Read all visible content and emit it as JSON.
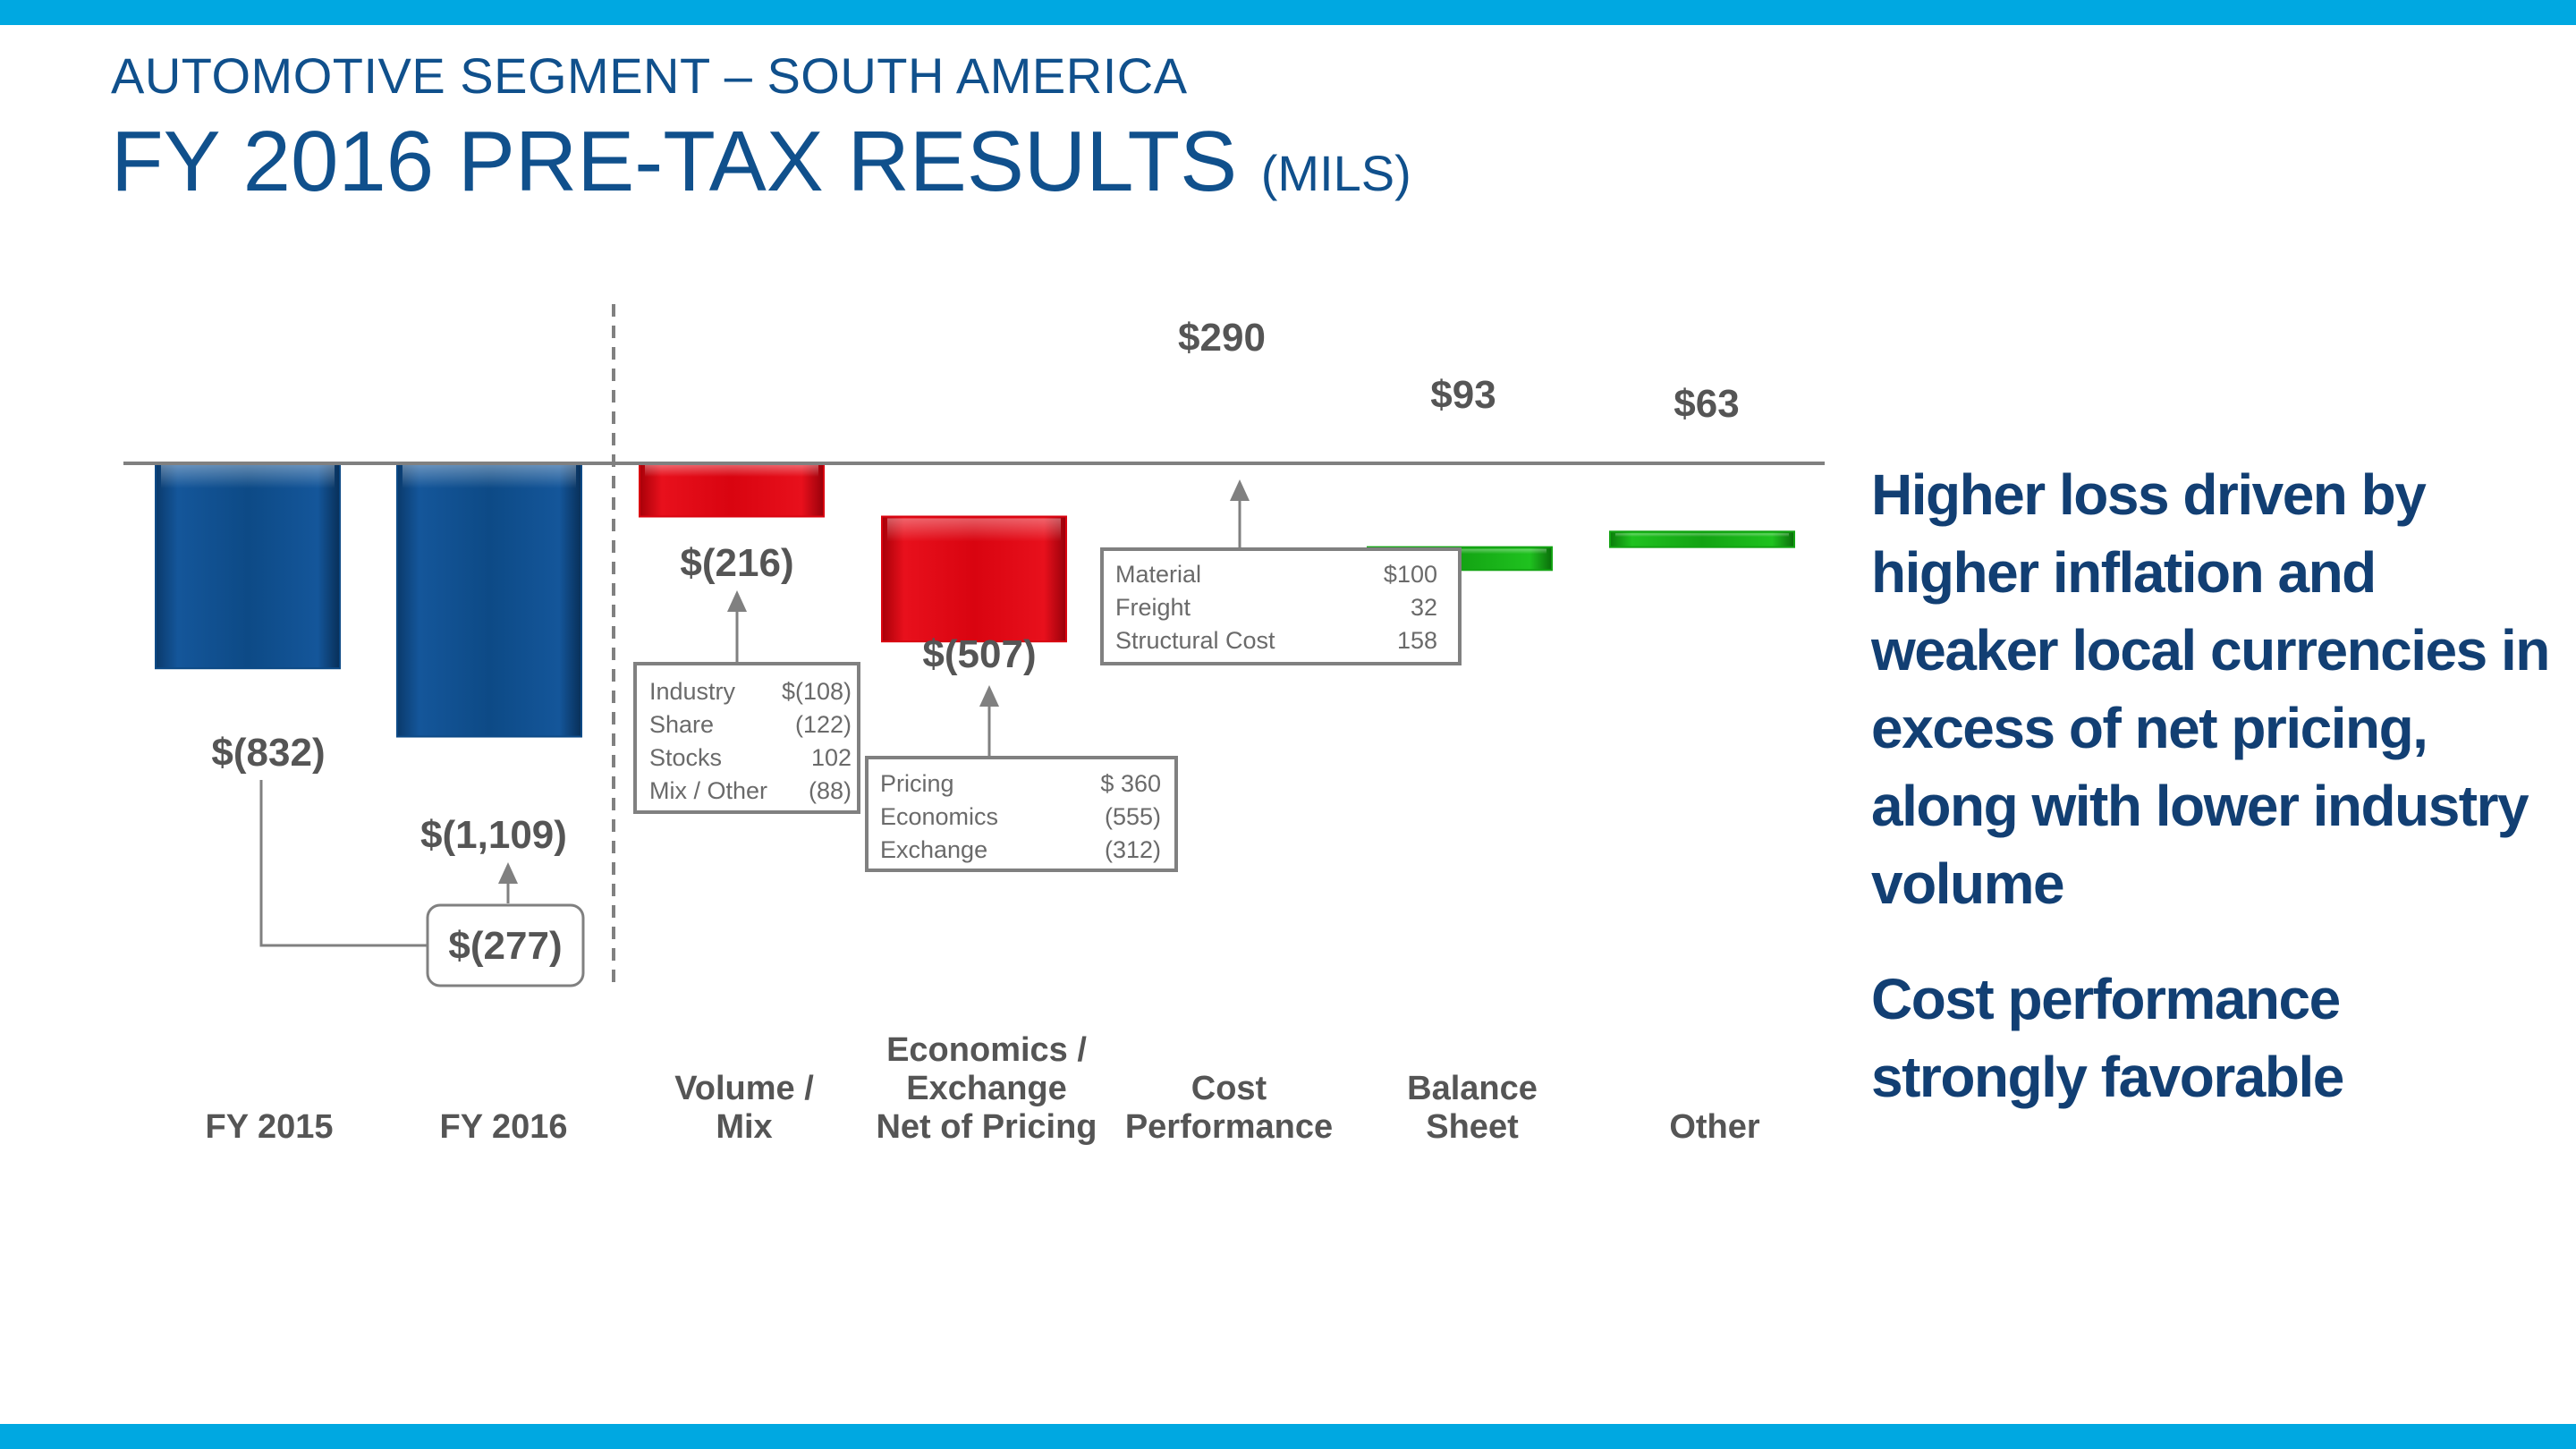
{
  "header": {
    "subtitle": "AUTOMOTIVE SEGMENT – SOUTH AMERICA",
    "title": "FY 2016 PRE-TAX RESULTS",
    "title_units": "(MILS)"
  },
  "chart_data": {
    "type": "bar",
    "subtype": "waterfall",
    "categories": [
      "FY 2015",
      "FY 2016",
      "Volume / Mix",
      "Economics / Exchange Net of Pricing",
      "Cost Performance",
      "Balance Sheet",
      "Other"
    ],
    "category_label_lines": [
      [
        "FY 2015"
      ],
      [
        "FY 2016"
      ],
      [
        "Volume /",
        "Mix"
      ],
      [
        "Economics /",
        "Exchange",
        "Net of Pricing"
      ],
      [
        "Cost",
        "Performance"
      ],
      [
        "Balance",
        "Sheet"
      ],
      [
        "Other"
      ]
    ],
    "values": [
      -832,
      -1109,
      -216,
      -507,
      290,
      93,
      63
    ],
    "value_labels": [
      "$(832)",
      "$(1,109)",
      "$(216)",
      "$(507)",
      "$290",
      "$93",
      "$63"
    ],
    "bar_colors": [
      "blue",
      "blue",
      "red",
      "red",
      "green",
      "green",
      "green"
    ],
    "change": {
      "label": "$(277)",
      "value": -277,
      "from": "FY 2015",
      "to": "FY 2016"
    },
    "breakdowns": [
      {
        "category": "Volume / Mix",
        "rows": [
          {
            "label": "Industry",
            "value": "$(108)"
          },
          {
            "label": "Share",
            "value": "(122)"
          },
          {
            "label": "Stocks",
            "value": "102"
          },
          {
            "label": "Mix / Other",
            "value": "(88)"
          }
        ]
      },
      {
        "category": "Economics / Exchange Net of Pricing",
        "rows": [
          {
            "label": "Pricing",
            "value": "$ 360"
          },
          {
            "label": "Economics",
            "value": "(555)"
          },
          {
            "label": "Exchange",
            "value": "(312)"
          }
        ]
      },
      {
        "category": "Cost Performance",
        "rows": [
          {
            "label": "Material",
            "value": "$100"
          },
          {
            "label": "Freight",
            "value": "32"
          },
          {
            "label": "Structural Cost",
            "value": "158"
          }
        ]
      }
    ],
    "colors": {
      "blue": "#0d4a86",
      "red": "#d90410",
      "green": "#13a313",
      "axis": "#808080",
      "label": "#555555"
    },
    "grid": false,
    "legend": "none"
  },
  "commentary": [
    "Higher loss driven by higher inflation and weaker local currencies in excess of net pricing, along with lower industry volume",
    "Cost performance strongly favorable"
  ]
}
